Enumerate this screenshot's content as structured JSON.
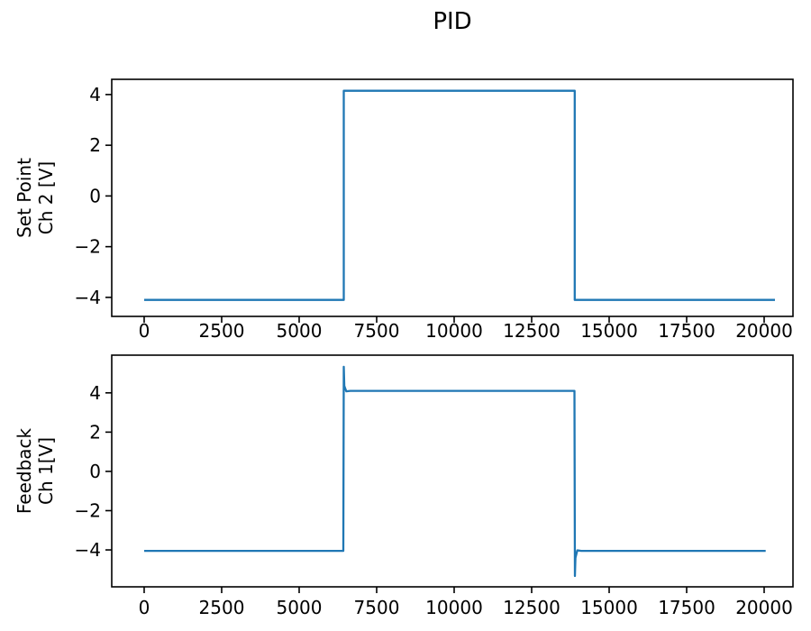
{
  "figure": {
    "title": "PID",
    "background": "#ffffff",
    "text_color": "#000000",
    "spine_color": "#000000"
  },
  "chart_data": [
    {
      "type": "line",
      "title": "PID",
      "xlabel": "",
      "ylabel_lines": [
        "Set Point",
        "Ch 2 [V]"
      ],
      "xlim": [
        -1046,
        20930
      ],
      "ylim": [
        -4.75,
        4.6
      ],
      "xticks": {
        "values": [
          0,
          2500,
          5000,
          7500,
          10000,
          12500,
          15000,
          17500,
          20000
        ],
        "labels": [
          "0",
          "2500",
          "5000",
          "7500",
          "10000",
          "12500",
          "15000",
          "17500",
          "20000"
        ]
      },
      "yticks": {
        "values": [
          -4,
          -2,
          0,
          2,
          4
        ],
        "labels": [
          "−4",
          "−2",
          "0",
          "2",
          "4"
        ]
      },
      "grid": false,
      "legend": false,
      "line_color": "#1f77b4",
      "series": [
        {
          "name": "set-point-ch2",
          "x": [
            0,
            6440,
            6440,
            13890,
            13890,
            20350
          ],
          "y": [
            -4.1,
            -4.1,
            4.15,
            4.15,
            -4.1,
            -4.1
          ]
        }
      ]
    },
    {
      "type": "line",
      "title": "",
      "xlabel": "",
      "ylabel_lines": [
        "Feedback",
        "Ch 1[V]"
      ],
      "xlim": [
        -1046,
        20930
      ],
      "ylim": [
        -5.88,
        5.92
      ],
      "xticks": {
        "values": [
          0,
          2500,
          5000,
          7500,
          10000,
          12500,
          15000,
          17500,
          20000
        ],
        "labels": [
          "0",
          "2500",
          "5000",
          "7500",
          "10000",
          "12500",
          "15000",
          "17500",
          "20000"
        ]
      },
      "yticks": {
        "values": [
          -4,
          -2,
          0,
          2,
          4
        ],
        "labels": [
          "−4",
          "−2",
          "0",
          "2",
          "4"
        ]
      },
      "grid": false,
      "legend": false,
      "line_color": "#1f77b4",
      "series": [
        {
          "name": "feedback-ch1",
          "x": [
            0,
            6425,
            6440,
            6458,
            6520,
            6650,
            13880,
            13895,
            13913,
            13975,
            14100,
            20050
          ],
          "y": [
            -4.05,
            -4.05,
            5.33,
            4.35,
            4.08,
            4.1,
            4.1,
            -5.33,
            -4.4,
            -4.02,
            -4.05,
            -4.05
          ]
        }
      ]
    }
  ]
}
